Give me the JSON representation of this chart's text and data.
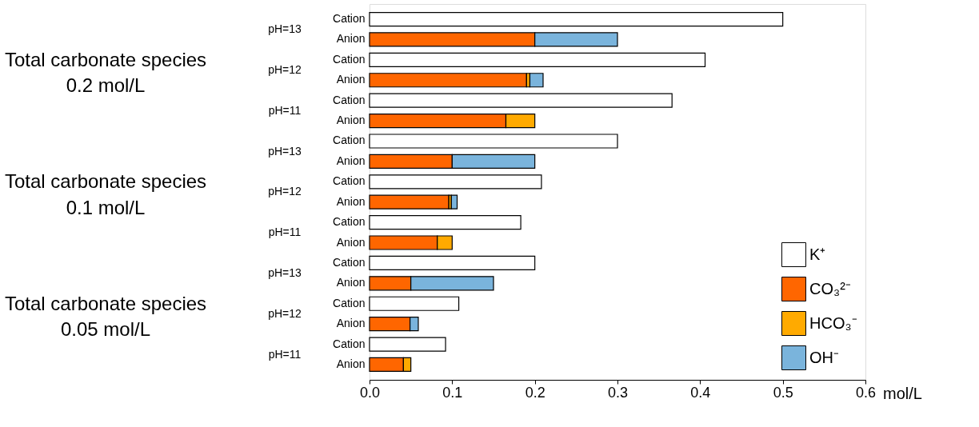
{
  "chart_data": {
    "type": "bar",
    "orientation": "horizontal",
    "stacked": true,
    "categories": [
      "Cation",
      "Anion",
      "Cation",
      "Anion",
      "Cation",
      "Anion",
      "Cation",
      "Anion",
      "Cation",
      "Anion",
      "Cation",
      "Anion",
      "Cation",
      "Anion",
      "Cation",
      "Anion",
      "Cation",
      "Anion"
    ],
    "series": [
      {
        "name": "K⁺",
        "color": "#ffffff",
        "values": [
          0.5,
          null,
          0.406,
          null,
          0.366,
          null,
          0.3,
          null,
          0.208,
          null,
          0.183,
          null,
          0.2,
          null,
          0.108,
          null,
          0.092,
          null
        ]
      },
      {
        "name": "CO₃²⁻",
        "color": "#ff6600",
        "values": [
          null,
          0.2,
          null,
          0.19,
          null,
          0.165,
          null,
          0.1,
          null,
          0.096,
          null,
          0.082,
          null,
          0.05,
          null,
          0.049,
          null,
          0.041
        ]
      },
      {
        "name": "HCO₃⁻",
        "color": "#ffaa00",
        "values": [
          null,
          null,
          null,
          0.004,
          null,
          0.035,
          null,
          null,
          null,
          0.003,
          null,
          0.018,
          null,
          null,
          null,
          null,
          null,
          0.009
        ]
      },
      {
        "name": "OH⁻",
        "color": "#7ab4dc",
        "values": [
          null,
          0.1,
          null,
          0.016,
          null,
          null,
          null,
          0.1,
          null,
          0.007,
          null,
          null,
          null,
          0.1,
          null,
          0.01,
          null,
          null
        ]
      }
    ],
    "xlabel": "mol/L",
    "xlim": [
      0,
      0.6
    ],
    "xticks": [
      {
        "value": 0,
        "label": "0.0"
      },
      0.1,
      0.2,
      0.3,
      0.4,
      0.5,
      0.6
    ],
    "annotations": [
      "Total carbonate species\n0.2 mol/L",
      "pH=13",
      "pH=12",
      "pH=11",
      "Total carbonate species\n0.1 mol/L",
      "pH=13",
      "pH=12",
      "pH=11",
      "Total carbonate species\n0.05 mol/L",
      "pH=13",
      "pH=12",
      "pH=11"
    ],
    "legend": "bottom right",
    "grid": false
  }
}
